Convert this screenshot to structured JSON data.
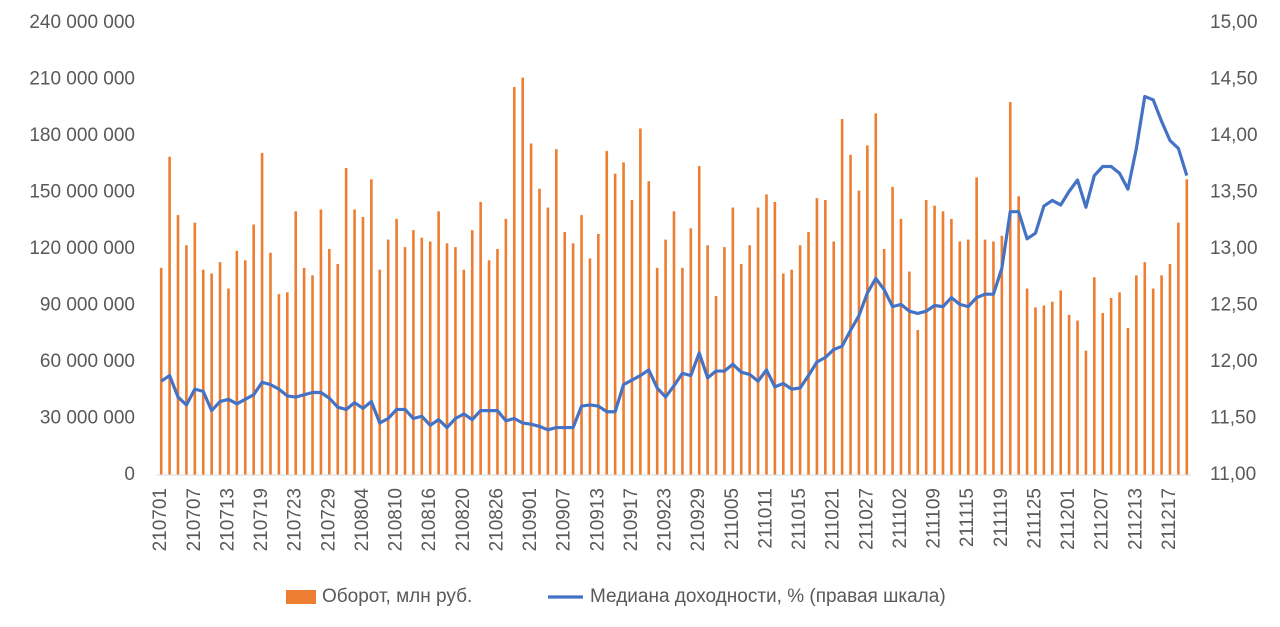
{
  "chart_data": {
    "type": "bar",
    "categories": [
      "210701",
      null,
      null,
      null,
      "210707",
      null,
      null,
      null,
      "210713",
      null,
      null,
      null,
      "210719",
      null,
      null,
      null,
      "210723",
      null,
      null,
      null,
      "210729",
      null,
      null,
      null,
      "210804",
      null,
      null,
      null,
      "210810",
      null,
      null,
      null,
      "210816",
      null,
      null,
      null,
      "210820",
      null,
      null,
      null,
      "210826",
      null,
      null,
      null,
      "210901",
      null,
      null,
      null,
      "210907",
      null,
      null,
      null,
      "210913",
      null,
      null,
      null,
      "210917",
      null,
      null,
      null,
      "210923",
      null,
      null,
      null,
      "210929",
      null,
      null,
      null,
      "211005",
      null,
      null,
      null,
      "211011",
      null,
      null,
      null,
      "211015",
      null,
      null,
      null,
      "211021",
      null,
      null,
      null,
      "211027",
      null,
      null,
      null,
      "211102",
      null,
      null,
      null,
      "211109",
      null,
      null,
      null,
      "211115",
      null,
      null,
      null,
      "211119",
      null,
      null,
      null,
      "211125",
      null,
      null,
      null,
      "211201",
      null,
      null,
      null,
      "211207",
      null,
      null,
      null,
      "211213",
      null,
      null,
      null,
      "211217",
      null,
      null
    ],
    "series": [
      {
        "name": "Оборот, млн руб.",
        "type": "bar",
        "color": "#ed7d31",
        "values": [
          110000000,
          169000000,
          138000000,
          122000000,
          134000000,
          109000000,
          107000000,
          113000000,
          99000000,
          119000000,
          114000000,
          133000000,
          171000000,
          118000000,
          96000000,
          97000000,
          140000000,
          110000000,
          106000000,
          141000000,
          120000000,
          112000000,
          163000000,
          141000000,
          137000000,
          157000000,
          109000000,
          125000000,
          136000000,
          121000000,
          130000000,
          126000000,
          124000000,
          140000000,
          123000000,
          121000000,
          109000000,
          130000000,
          145000000,
          114000000,
          120000000,
          136000000,
          206000000,
          211000000,
          176000000,
          152000000,
          142000000,
          173000000,
          129000000,
          123000000,
          138000000,
          115000000,
          128000000,
          172000000,
          160000000,
          166000000,
          146000000,
          184000000,
          156000000,
          110000000,
          125000000,
          140000000,
          110000000,
          131000000,
          164000000,
          122000000,
          95000000,
          121000000,
          142000000,
          112000000,
          122000000,
          142000000,
          149000000,
          145000000,
          107000000,
          109000000,
          122000000,
          129000000,
          147000000,
          146000000,
          124000000,
          189000000,
          170000000,
          151000000,
          175000000,
          192000000,
          120000000,
          153000000,
          136000000,
          108000000,
          77000000,
          146000000,
          143000000,
          140000000,
          136000000,
          124000000,
          125000000,
          158000000,
          125000000,
          124000000,
          127000000,
          198000000,
          148000000,
          99000000,
          89000000,
          90000000,
          92000000,
          98000000,
          85000000,
          82000000,
          66000000,
          105000000,
          86000000,
          94000000,
          97000000,
          78000000,
          106000000,
          113000000,
          99000000,
          106000000,
          112000000,
          134000000,
          157000000
        ]
      },
      {
        "name": "Медиана доходности, % (правая шкала)",
        "type": "line",
        "axis": "y2",
        "color": "#4472c4",
        "values": [
          11.83,
          11.88,
          11.69,
          11.62,
          11.76,
          11.74,
          11.57,
          11.65,
          11.67,
          11.63,
          11.67,
          11.71,
          11.82,
          11.8,
          11.76,
          11.7,
          11.69,
          11.71,
          11.73,
          11.73,
          11.68,
          11.6,
          11.58,
          11.64,
          11.59,
          11.65,
          11.46,
          11.5,
          11.58,
          11.58,
          11.5,
          11.52,
          11.44,
          11.49,
          11.42,
          11.5,
          11.54,
          11.49,
          11.57,
          11.57,
          11.57,
          11.48,
          11.5,
          11.46,
          11.45,
          11.43,
          11.4,
          11.42,
          11.42,
          11.42,
          11.61,
          11.62,
          11.61,
          11.56,
          11.56,
          11.8,
          11.84,
          11.88,
          11.93,
          11.77,
          11.69,
          11.79,
          11.9,
          11.88,
          12.08,
          11.86,
          11.92,
          11.92,
          11.98,
          11.91,
          11.89,
          11.83,
          11.93,
          11.78,
          11.81,
          11.76,
          11.77,
          11.88,
          12.0,
          12.04,
          12.11,
          12.14,
          12.28,
          12.41,
          12.61,
          12.74,
          12.64,
          12.49,
          12.51,
          12.45,
          12.43,
          12.45,
          12.5,
          12.49,
          12.57,
          12.51,
          12.49,
          12.57,
          12.6,
          12.6,
          12.83,
          13.33,
          13.33,
          13.09,
          13.14,
          13.38,
          13.43,
          13.39,
          13.51,
          13.61,
          13.37,
          13.65,
          13.73,
          13.73,
          13.67,
          13.53,
          13.89,
          14.35,
          14.32,
          14.13,
          13.96,
          13.89,
          13.65
        ]
      }
    ],
    "ylim": [
      0,
      240000000
    ],
    "yticks": [
      0,
      {
        "value": 30000000,
        "label": "30 000 000"
      },
      {
        "value": 60000000,
        "label": "60 000 000"
      },
      {
        "value": 90000000,
        "label": "90 000 000"
      },
      {
        "value": 120000000,
        "label": "120 000 000"
      },
      {
        "value": 150000000,
        "label": "150 000 000"
      },
      {
        "value": 180000000,
        "label": "180 000 000"
      },
      {
        "value": 210000000,
        "label": "210 000 000"
      },
      {
        "value": 240000000,
        "label": "240 000 000"
      }
    ],
    "y2lim": [
      11,
      15
    ],
    "y2ticks": [
      {
        "value": 11,
        "label": "11,00"
      },
      {
        "value": 11.5,
        "label": "11,50"
      },
      {
        "value": 12,
        "label": "12,00"
      },
      {
        "value": 12.5,
        "label": "12,50"
      },
      {
        "value": 13,
        "label": "13,00"
      },
      {
        "value": 13.5,
        "label": "13,50"
      },
      {
        "value": 14,
        "label": "14,00"
      },
      {
        "value": 14.5,
        "label": "14,50"
      },
      {
        "value": 15,
        "label": "15,00"
      }
    ],
    "grid": false,
    "legend": "bottom"
  }
}
